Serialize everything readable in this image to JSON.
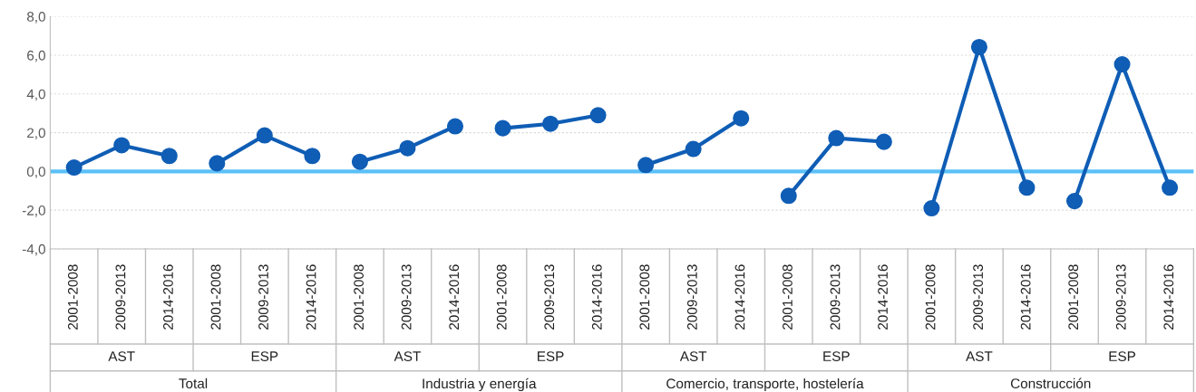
{
  "chart_data": {
    "type": "line",
    "categories": [
      "2001-2008",
      "2009-2013",
      "2014-2016",
      "2001-2008",
      "2009-2013",
      "2014-2016",
      "2001-2008",
      "2009-2013",
      "2014-2016",
      "2001-2008",
      "2009-2013",
      "2014-2016",
      "2001-2008",
      "2009-2013",
      "2014-2016",
      "2001-2008",
      "2009-2013",
      "2014-2016",
      "2001-2008",
      "2009-2013",
      "2014-2016",
      "2001-2008",
      "2009-2013",
      "2014-2016"
    ],
    "series": [
      {
        "color": "#0f5db5",
        "values": [
          0.2,
          1.35,
          0.8,
          null,
          null,
          null,
          null,
          null,
          null,
          null,
          null,
          null,
          null,
          null,
          null,
          null,
          null,
          null,
          null,
          null,
          null,
          null,
          null,
          null
        ]
      },
      {
        "color": "#0f5db5",
        "values": [
          null,
          null,
          null,
          0.42,
          1.86,
          0.8,
          null,
          null,
          null,
          null,
          null,
          null,
          null,
          null,
          null,
          null,
          null,
          null,
          null,
          null,
          null,
          null,
          null,
          null
        ]
      },
      {
        "color": "#0f5db5",
        "values": [
          null,
          null,
          null,
          null,
          null,
          null,
          0.5,
          1.2,
          2.33,
          null,
          null,
          null,
          null,
          null,
          null,
          null,
          null,
          null,
          null,
          null,
          null,
          null,
          null,
          null
        ]
      },
      {
        "color": "#0f5db5",
        "values": [
          null,
          null,
          null,
          null,
          null,
          null,
          null,
          null,
          null,
          2.23,
          2.46,
          2.9,
          null,
          null,
          null,
          null,
          null,
          null,
          null,
          null,
          null,
          null,
          null,
          null
        ]
      },
      {
        "color": "#0f5db5",
        "values": [
          null,
          null,
          null,
          null,
          null,
          null,
          null,
          null,
          null,
          null,
          null,
          null,
          0.33,
          1.16,
          2.74,
          null,
          null,
          null,
          null,
          null,
          null,
          null,
          null,
          null
        ]
      },
      {
        "color": "#0f5db5",
        "values": [
          null,
          null,
          null,
          null,
          null,
          null,
          null,
          null,
          null,
          null,
          null,
          null,
          null,
          null,
          null,
          -1.26,
          1.72,
          1.53,
          null,
          null,
          null,
          null,
          null,
          null
        ]
      },
      {
        "color": "#0f5db5",
        "values": [
          null,
          null,
          null,
          null,
          null,
          null,
          null,
          null,
          null,
          null,
          null,
          null,
          null,
          null,
          null,
          null,
          null,
          null,
          -1.9,
          6.42,
          -0.84,
          null,
          null,
          null
        ]
      },
      {
        "color": "#0f5db5",
        "values": [
          null,
          null,
          null,
          null,
          null,
          null,
          null,
          null,
          null,
          null,
          null,
          null,
          null,
          null,
          null,
          null,
          null,
          null,
          null,
          null,
          null,
          -1.53,
          5.53,
          -0.84
        ]
      }
    ],
    "annotations": [
      "AST",
      "ESP",
      "AST",
      "ESP",
      "AST",
      "ESP",
      "AST",
      "ESP",
      "Total",
      "Industria y energía",
      "Comercio, transporte, hostelería",
      "Construcción"
    ],
    "ylim": [
      -4,
      8
    ],
    "yticks": [
      {
        "value": -4,
        "label": "-4,0"
      },
      {
        "value": -2,
        "label": "-2,0"
      },
      {
        "value": 0,
        "label": "0,0"
      },
      {
        "value": 2,
        "label": "2,0"
      },
      {
        "value": 4,
        "label": "4,0"
      },
      {
        "value": 6,
        "label": "6,0"
      },
      {
        "value": 8,
        "label": "8,0"
      }
    ],
    "ref_lines": [
      {
        "axis": "y",
        "value": 0,
        "color": "#5bc0f8"
      }
    ],
    "grid": "y",
    "marker": "circle",
    "line_style": "solid",
    "legend": false
  }
}
